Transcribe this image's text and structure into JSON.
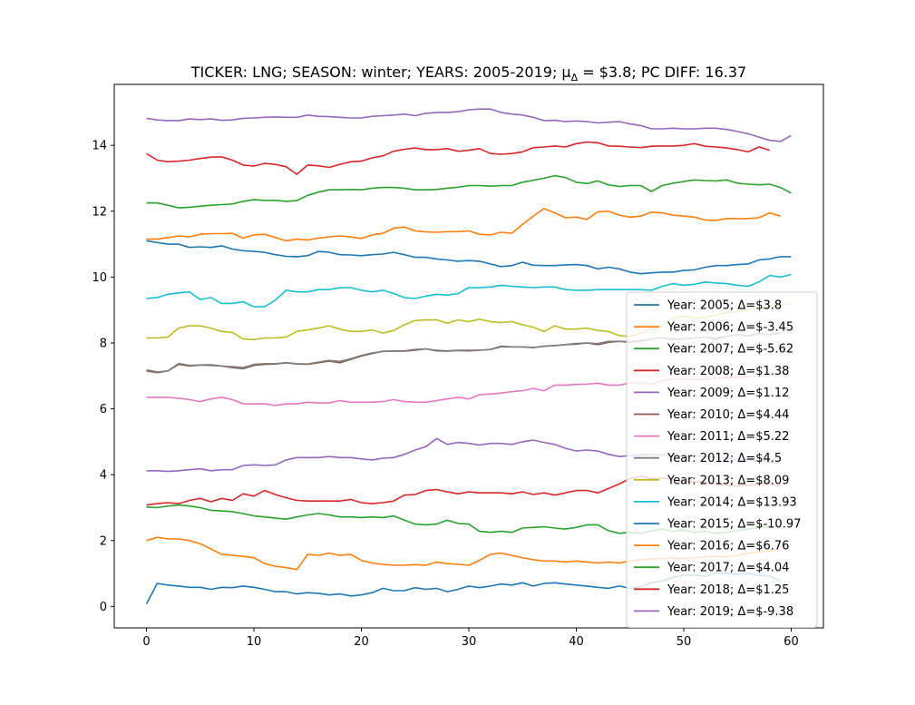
{
  "chart_data": {
    "type": "line",
    "title": "TICKER: LNG; SEASON: winter; YEARS: 2005-2019; μΔ = $3.8; PC DIFF: 16.37",
    "xlabel": "",
    "ylabel": "",
    "xlim": [
      -3,
      63
    ],
    "ylim": [
      -0.65,
      15.85
    ],
    "xticks": [
      0,
      10,
      20,
      30,
      40,
      50,
      60
    ],
    "yticks": [
      0,
      2,
      4,
      6,
      8,
      10,
      12,
      14
    ],
    "grid": false,
    "legend_position": "lower right",
    "series": [
      {
        "name": "Year: 2005; Δ=$3.8",
        "color": "#1f77b4",
        "x_start": 0,
        "values": [
          11.1,
          11.05,
          11.0,
          11.0,
          10.9,
          10.92,
          10.9,
          10.95,
          10.85,
          10.8,
          10.78,
          10.75,
          10.68,
          10.63,
          10.62,
          10.65,
          10.78,
          10.75,
          10.68,
          10.67,
          10.65,
          10.68,
          10.7,
          10.75,
          10.68,
          10.6,
          10.6,
          10.55,
          10.52,
          10.48,
          10.5,
          10.48,
          10.4,
          10.32,
          10.35,
          10.45,
          10.36,
          10.35,
          10.35,
          10.37,
          10.38,
          10.35,
          10.25,
          10.3,
          10.25,
          10.15,
          10.1,
          10.13,
          10.15,
          10.15,
          10.2,
          10.22,
          10.3,
          10.35,
          10.35,
          10.38,
          10.4,
          10.52,
          10.55,
          10.62,
          10.62
        ]
      },
      {
        "name": "Year: 2006; Δ=$-3.45",
        "color": "#ff7f0e",
        "x_start": 0,
        "values": [
          11.15,
          11.15,
          11.2,
          11.25,
          11.22,
          11.3,
          11.32,
          11.32,
          11.33,
          11.18,
          11.28,
          11.3,
          11.2,
          11.1,
          11.15,
          11.13,
          11.18,
          11.22,
          11.25,
          11.22,
          11.17,
          11.28,
          11.33,
          11.48,
          11.52,
          11.4,
          11.37,
          11.36,
          11.38,
          11.38,
          11.4,
          11.3,
          11.28,
          11.36,
          11.33,
          11.6,
          11.85,
          12.08,
          11.95,
          11.8,
          11.82,
          11.75,
          11.98,
          12.0,
          11.88,
          11.82,
          11.85,
          11.97,
          11.95,
          11.88,
          11.85,
          11.82,
          11.73,
          11.72,
          11.78,
          11.77,
          11.78,
          11.8,
          11.95,
          11.85
        ]
      },
      {
        "name": "Year: 2007; Δ=$-5.62",
        "color": "#2ca02c",
        "x_start": 0,
        "values": [
          12.25,
          12.25,
          12.18,
          12.1,
          12.12,
          12.15,
          12.18,
          12.2,
          12.22,
          12.3,
          12.35,
          12.33,
          12.33,
          12.3,
          12.32,
          12.48,
          12.58,
          12.65,
          12.65,
          12.66,
          12.65,
          12.7,
          12.72,
          12.72,
          12.7,
          12.65,
          12.65,
          12.66,
          12.7,
          12.73,
          12.78,
          12.78,
          12.76,
          12.78,
          12.78,
          12.88,
          12.94,
          13.0,
          13.08,
          13.02,
          12.88,
          12.84,
          12.92,
          12.8,
          12.75,
          12.78,
          12.78,
          12.6,
          12.78,
          12.85,
          12.9,
          12.95,
          12.93,
          12.92,
          12.95,
          12.85,
          12.82,
          12.8,
          12.82,
          12.72,
          12.55
        ]
      },
      {
        "name": "Year: 2008; Δ=$1.38",
        "color": "#d62728",
        "x_start": 0,
        "values": [
          13.75,
          13.55,
          13.5,
          13.52,
          13.55,
          13.6,
          13.64,
          13.65,
          13.55,
          13.4,
          13.37,
          13.45,
          13.42,
          13.35,
          13.12,
          13.4,
          13.38,
          13.33,
          13.42,
          13.5,
          13.52,
          13.62,
          13.68,
          13.82,
          13.88,
          13.92,
          13.87,
          13.87,
          13.9,
          13.82,
          13.85,
          13.9,
          13.75,
          13.73,
          13.75,
          13.8,
          13.93,
          13.95,
          13.98,
          13.95,
          14.05,
          14.1,
          14.08,
          13.98,
          13.97,
          13.95,
          13.93,
          13.97,
          13.98,
          13.98,
          14.0,
          14.05,
          13.97,
          13.95,
          13.92,
          13.87,
          13.8,
          13.95,
          13.85
        ]
      },
      {
        "name": "Year: 2009; Δ=$1.12",
        "color": "#9467bd",
        "x_start": 0,
        "values": [
          14.82,
          14.77,
          14.75,
          14.75,
          14.8,
          14.78,
          14.8,
          14.76,
          14.77,
          14.82,
          14.83,
          14.85,
          14.86,
          14.85,
          14.85,
          14.92,
          14.88,
          14.87,
          14.85,
          14.83,
          14.83,
          14.88,
          14.9,
          14.92,
          14.95,
          14.9,
          14.97,
          15.0,
          15.0,
          15.02,
          15.08,
          15.1,
          15.1,
          15.0,
          14.95,
          14.92,
          14.85,
          14.75,
          14.76,
          14.72,
          14.74,
          14.72,
          14.68,
          14.7,
          14.72,
          14.65,
          14.6,
          14.5,
          14.5,
          14.52,
          14.5,
          14.5,
          14.52,
          14.52,
          14.48,
          14.42,
          14.35,
          14.25,
          14.15,
          14.12,
          14.3
        ]
      },
      {
        "name": "Year: 2010; Δ=$4.44",
        "color": "#8c564b",
        "x_start": 0,
        "values": [
          7.15,
          7.1,
          7.15,
          7.35,
          7.3,
          7.33,
          7.32,
          7.3,
          7.25,
          7.22,
          7.32,
          7.35,
          7.36,
          7.4,
          7.36,
          7.35,
          7.4,
          7.45,
          7.4,
          7.5,
          7.6,
          7.68,
          7.75,
          7.75,
          7.75,
          7.78,
          7.82,
          7.76,
          7.75,
          7.77,
          7.76,
          7.78,
          7.8,
          7.9,
          7.88,
          7.88,
          7.86,
          7.9,
          7.92,
          7.95,
          7.98,
          8.0,
          7.95,
          8.02,
          8.05,
          8.02,
          8.05,
          8.12,
          8.15,
          8.1,
          8.12,
          8.15,
          8.18,
          8.1,
          8.2,
          8.25,
          8.22,
          8.3,
          8.25,
          8.3
        ]
      },
      {
        "name": "Year: 2011; Δ=$5.22",
        "color": "#e377c2",
        "x_start": 0,
        "values": [
          6.35,
          6.35,
          6.35,
          6.32,
          6.28,
          6.22,
          6.3,
          6.35,
          6.28,
          6.15,
          6.15,
          6.15,
          6.1,
          6.15,
          6.15,
          6.2,
          6.18,
          6.18,
          6.25,
          6.2,
          6.2,
          6.2,
          6.22,
          6.28,
          6.22,
          6.2,
          6.2,
          6.25,
          6.3,
          6.35,
          6.3,
          6.43,
          6.45,
          6.48,
          6.52,
          6.55,
          6.62,
          6.55,
          6.72,
          6.72,
          6.74,
          6.75,
          6.78,
          6.72,
          6.72,
          6.78,
          6.8,
          6.75,
          6.85,
          6.9,
          6.92,
          6.88,
          6.9,
          6.92,
          6.95,
          6.95,
          6.98,
          7.0,
          7.02,
          7.05
        ]
      },
      {
        "name": "Year: 2012; Δ=$4.5",
        "color": "#7f7f7f",
        "x_start": 0,
        "values": [
          7.18,
          7.12,
          7.15,
          7.38,
          7.32,
          7.33,
          7.34,
          7.3,
          7.28,
          7.25,
          7.35,
          7.37,
          7.37,
          7.4,
          7.37,
          7.36,
          7.42,
          7.47,
          7.44,
          7.52,
          7.62,
          7.7,
          7.74,
          7.76,
          7.76,
          7.8,
          7.82,
          7.78,
          7.76,
          7.78,
          7.78,
          7.78,
          7.8,
          7.88,
          7.88,
          7.88,
          7.86,
          7.9,
          7.92,
          7.95,
          7.96,
          8.0,
          7.98,
          8.05,
          8.05,
          8.04,
          8.08,
          8.12,
          8.15,
          8.12,
          8.12,
          8.15,
          8.18,
          8.15,
          8.2,
          8.25,
          8.2,
          8.28,
          8.25,
          8.3
        ]
      },
      {
        "name": "Year: 2013; Δ=$8.09",
        "color": "#bcbd22",
        "x_start": 0,
        "values": [
          8.15,
          8.15,
          8.18,
          8.45,
          8.52,
          8.52,
          8.45,
          8.35,
          8.32,
          8.12,
          8.1,
          8.15,
          8.15,
          8.18,
          8.35,
          8.4,
          8.45,
          8.52,
          8.42,
          8.35,
          8.35,
          8.4,
          8.3,
          8.38,
          8.55,
          8.68,
          8.7,
          8.7,
          8.6,
          8.7,
          8.65,
          8.72,
          8.65,
          8.62,
          8.65,
          8.55,
          8.48,
          8.35,
          8.52,
          8.42,
          8.42,
          8.45,
          8.38,
          8.35,
          8.22,
          8.2,
          8.3,
          8.42,
          8.55,
          8.75,
          8.82,
          8.75,
          8.78,
          8.85,
          8.92,
          8.95,
          9.0,
          9.05,
          9.1,
          9.15,
          9.2
        ]
      },
      {
        "name": "Year: 2014; Δ=$13.93",
        "color": "#17becf",
        "x_start": 0,
        "values": [
          9.35,
          9.38,
          9.48,
          9.52,
          9.55,
          9.32,
          9.38,
          9.2,
          9.2,
          9.25,
          9.1,
          9.1,
          9.3,
          9.6,
          9.55,
          9.55,
          9.62,
          9.62,
          9.68,
          9.68,
          9.6,
          9.55,
          9.6,
          9.5,
          9.38,
          9.35,
          9.42,
          9.48,
          9.45,
          9.5,
          9.68,
          9.68,
          9.7,
          9.75,
          9.72,
          9.7,
          9.68,
          9.7,
          9.7,
          9.62,
          9.6,
          9.6,
          9.62,
          9.62,
          9.62,
          9.62,
          9.62,
          9.6,
          9.72,
          9.8,
          9.75,
          9.78,
          9.85,
          9.82,
          9.8,
          9.75,
          9.72,
          9.85,
          10.05,
          10.0,
          10.08
        ]
      },
      {
        "name": "Year: 2015; Δ=$-10.97",
        "color": "#1f77b4",
        "x_start": 0,
        "values": [
          0.08,
          0.7,
          0.65,
          0.62,
          0.58,
          0.58,
          0.52,
          0.58,
          0.57,
          0.62,
          0.58,
          0.52,
          0.45,
          0.45,
          0.38,
          0.42,
          0.4,
          0.35,
          0.38,
          0.32,
          0.35,
          0.42,
          0.55,
          0.48,
          0.48,
          0.57,
          0.52,
          0.55,
          0.45,
          0.52,
          0.62,
          0.57,
          0.62,
          0.68,
          0.65,
          0.72,
          0.62,
          0.7,
          0.72,
          0.68,
          0.65,
          0.62,
          0.58,
          0.55,
          0.62,
          0.55,
          0.6,
          0.72,
          0.78,
          0.88,
          0.95,
          0.95,
          0.92,
          1.02,
          1.0,
          0.98,
          1.0,
          0.95,
          0.92,
          0.78
        ]
      },
      {
        "name": "Year: 2016; Δ=$6.76",
        "color": "#ff7f0e",
        "x_start": 0,
        "values": [
          2.0,
          2.1,
          2.05,
          2.05,
          2.0,
          1.9,
          1.75,
          1.58,
          1.55,
          1.52,
          1.48,
          1.3,
          1.22,
          1.18,
          1.12,
          1.58,
          1.55,
          1.62,
          1.55,
          1.58,
          1.4,
          1.32,
          1.28,
          1.25,
          1.25,
          1.27,
          1.25,
          1.35,
          1.3,
          1.28,
          1.25,
          1.4,
          1.58,
          1.62,
          1.55,
          1.48,
          1.42,
          1.38,
          1.38,
          1.35,
          1.38,
          1.35,
          1.32,
          1.35,
          1.32,
          1.38,
          1.42,
          1.45,
          1.45,
          1.48,
          1.45,
          1.48,
          1.5,
          1.52,
          1.5,
          1.55,
          1.62,
          1.65,
          1.7,
          1.72
        ]
      },
      {
        "name": "Year: 2017; Δ=$4.04",
        "color": "#2ca02c",
        "x_start": 0,
        "values": [
          3.02,
          3.0,
          3.05,
          3.08,
          3.05,
          3.0,
          2.92,
          2.9,
          2.88,
          2.82,
          2.75,
          2.72,
          2.68,
          2.65,
          2.72,
          2.78,
          2.82,
          2.78,
          2.72,
          2.72,
          2.7,
          2.72,
          2.7,
          2.75,
          2.62,
          2.5,
          2.48,
          2.5,
          2.62,
          2.52,
          2.5,
          2.28,
          2.25,
          2.28,
          2.25,
          2.38,
          2.4,
          2.42,
          2.38,
          2.35,
          2.4,
          2.48,
          2.48,
          2.3,
          2.22,
          2.25,
          2.22,
          2.3,
          2.35,
          2.28,
          2.32,
          2.25,
          2.28,
          2.22,
          2.25,
          2.3,
          2.35,
          2.4,
          2.42,
          2.45
        ]
      },
      {
        "name": "Year: 2018; Δ=$1.25",
        "color": "#d62728",
        "x_start": 0,
        "values": [
          3.08,
          3.12,
          3.15,
          3.12,
          3.22,
          3.28,
          3.18,
          3.28,
          3.22,
          3.42,
          3.35,
          3.52,
          3.4,
          3.3,
          3.22,
          3.2,
          3.2,
          3.2,
          3.2,
          3.25,
          3.15,
          3.12,
          3.15,
          3.2,
          3.38,
          3.4,
          3.52,
          3.55,
          3.48,
          3.42,
          3.48,
          3.45,
          3.45,
          3.45,
          3.42,
          3.48,
          3.4,
          3.45,
          3.38,
          3.45,
          3.52,
          3.52,
          3.45,
          3.58,
          3.72,
          3.88,
          3.95,
          3.88,
          3.9,
          3.85,
          3.8,
          3.78,
          3.78,
          3.72,
          3.68,
          3.65,
          3.68,
          3.72,
          3.72,
          3.65
        ]
      },
      {
        "name": "Year: 2019; Δ=$-9.38",
        "color": "#9467bd",
        "x_start": 0,
        "values": [
          4.12,
          4.12,
          4.1,
          4.12,
          4.15,
          4.18,
          4.12,
          4.15,
          4.15,
          4.28,
          4.3,
          4.28,
          4.3,
          4.45,
          4.52,
          4.52,
          4.52,
          4.55,
          4.52,
          4.52,
          4.48,
          4.45,
          4.5,
          4.52,
          4.62,
          4.75,
          4.85,
          5.1,
          4.92,
          4.98,
          4.95,
          4.9,
          4.95,
          4.95,
          4.92,
          5.0,
          5.05,
          4.98,
          4.92,
          4.8,
          4.72,
          4.75,
          4.72,
          4.62,
          4.55,
          4.58,
          4.6,
          4.62,
          4.6,
          4.58,
          4.55,
          4.58,
          4.55,
          4.52,
          4.5,
          4.48,
          4.45,
          4.42,
          4.38,
          4.35
        ]
      }
    ]
  }
}
